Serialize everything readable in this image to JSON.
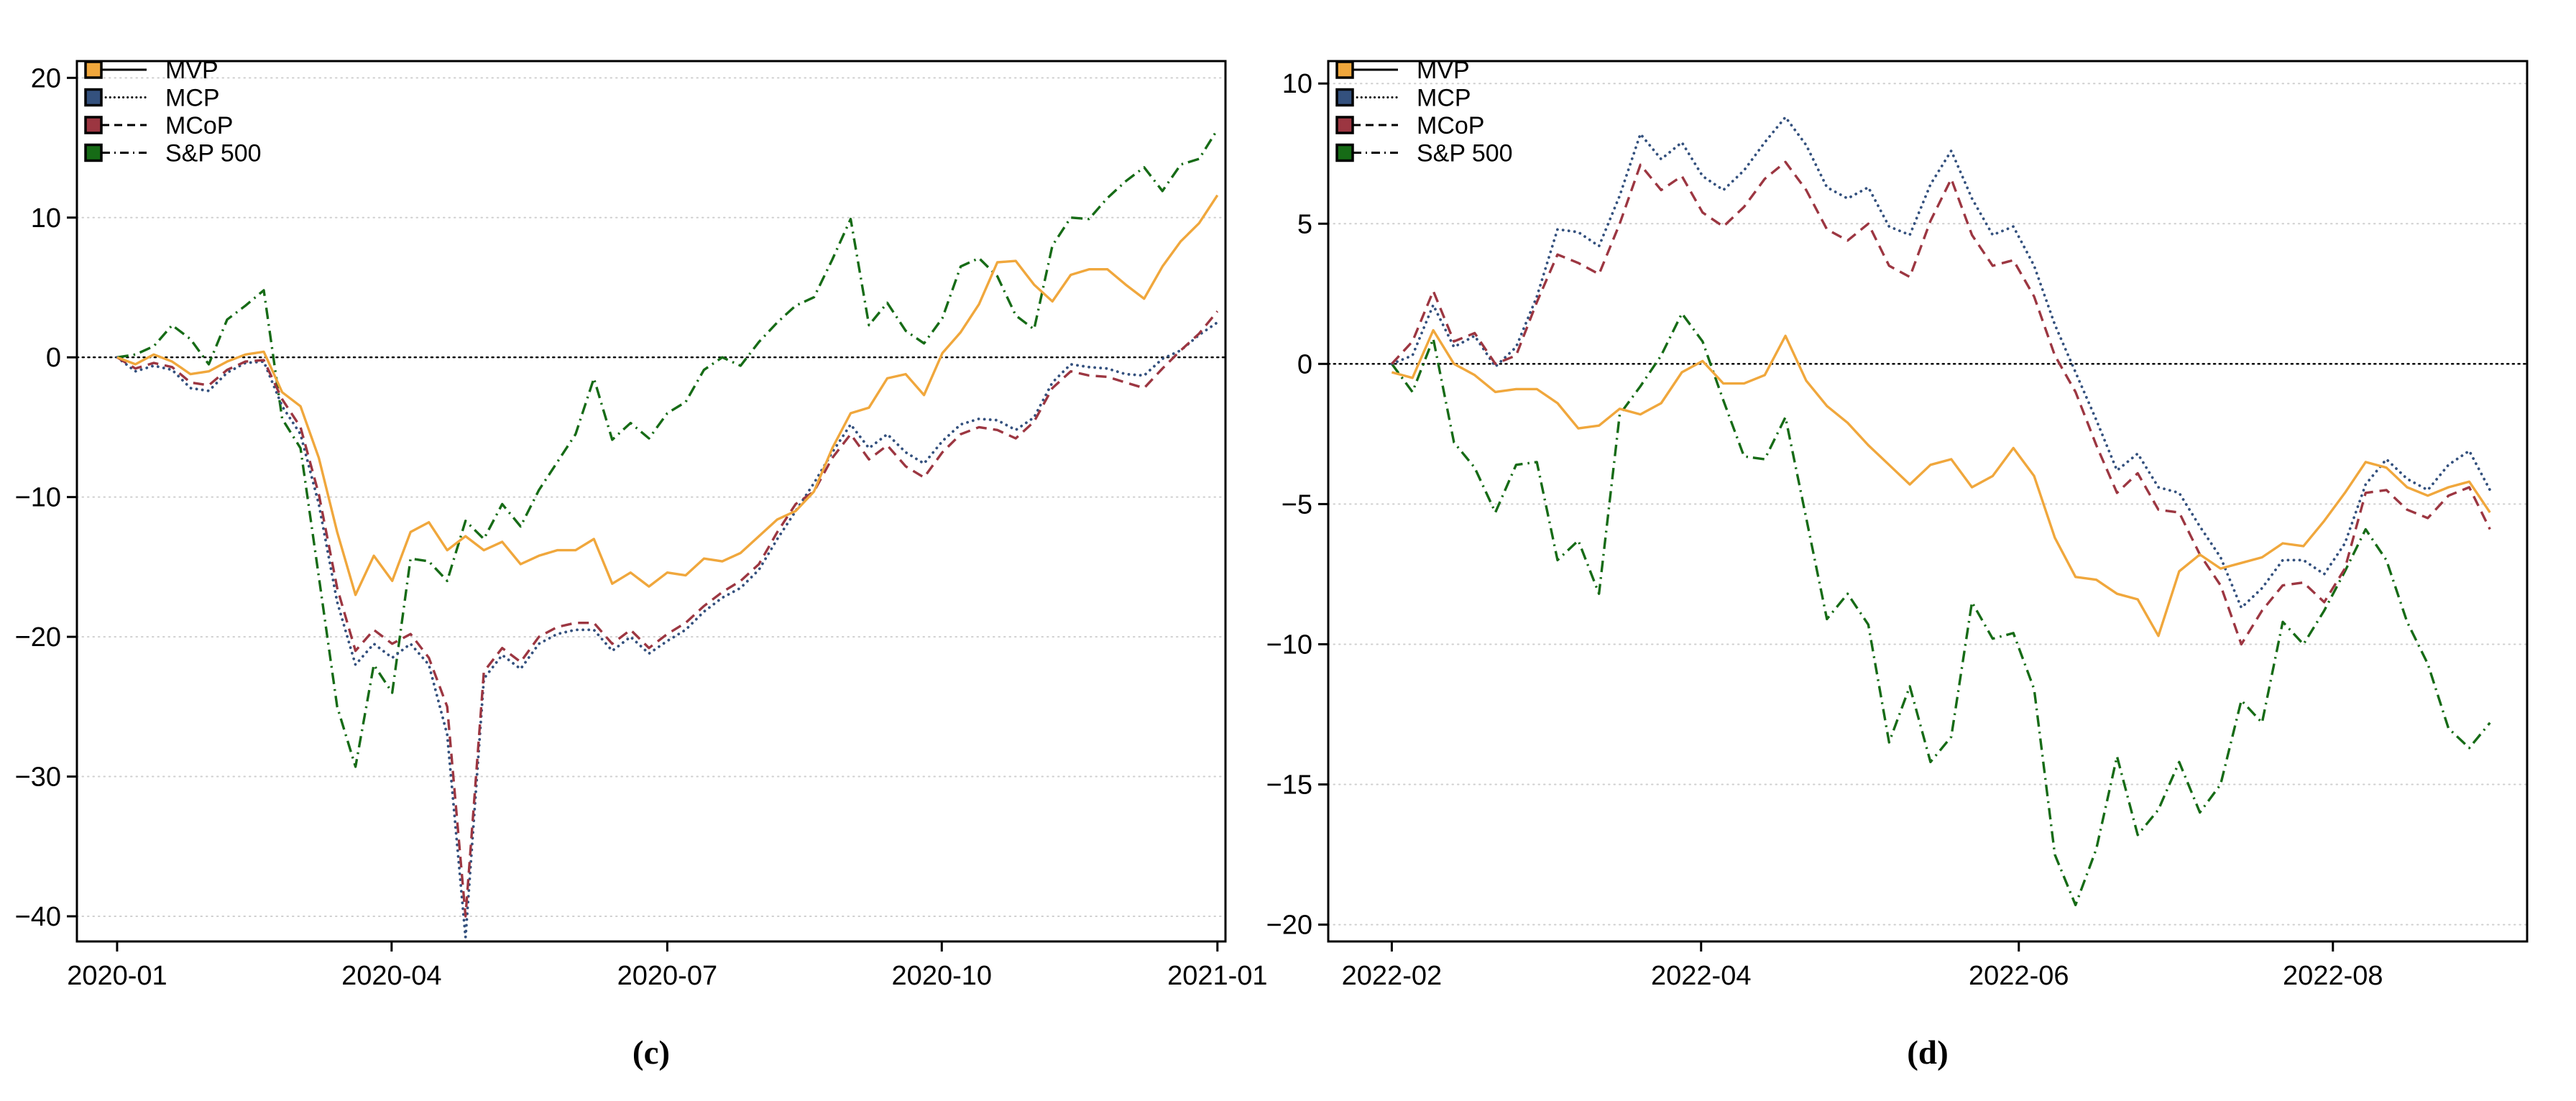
{
  "figure": {
    "caption_left": "(c)",
    "caption_right": "(d)"
  },
  "legend": {
    "items": [
      "MVP",
      "MCP",
      "MCoP",
      "S&P 500"
    ]
  },
  "chart_data": [
    {
      "id": "c",
      "type": "line",
      "caption": "(c)",
      "title": "",
      "xlabel": "",
      "ylabel": "",
      "grid": "horizontal-dotted",
      "legend_position": "top-left",
      "x_ticks": [
        {
          "label": "2020-01",
          "t": 0.035
        },
        {
          "label": "2020-04",
          "t": 0.274
        },
        {
          "label": "2020-07",
          "t": 0.514
        },
        {
          "label": "2020-10",
          "t": 0.753
        },
        {
          "label": "2021-01",
          "t": 0.993
        }
      ],
      "y_ticks": [
        {
          "v": 20,
          "label": "20"
        },
        {
          "v": 10,
          "label": "10"
        },
        {
          "v": 0,
          "label": "0"
        },
        {
          "v": -10,
          "label": "−10"
        },
        {
          "v": -20,
          "label": "−20"
        },
        {
          "v": -30,
          "label": "−30"
        },
        {
          "v": -40,
          "label": "−40"
        }
      ],
      "ylim": [
        -41.8,
        21.2
      ],
      "x_data_start": 0.035,
      "x_data_end": 0.993,
      "series": [
        {
          "name": "S&P 500",
          "color": "#166B16",
          "dash": "dashdot",
          "values": [
            0,
            0.2,
            0.8,
            2.3,
            1.3,
            -0.5,
            2.7,
            3.7,
            4.8,
            -4.4,
            -6.5,
            -15.7,
            -25.0,
            -29.3,
            -22.0,
            -24.0,
            -14.4,
            -14.6,
            -16.0,
            -11.7,
            -13.0,
            -10.5,
            -12.1,
            -9.5,
            -7.5,
            -5.5,
            -1.5,
            -5.9,
            -4.7,
            -5.8,
            -4.0,
            -3.2,
            -0.9,
            0.0,
            -0.6,
            1.1,
            2.5,
            3.7,
            4.3,
            7.0,
            9.9,
            2.3,
            3.9,
            1.9,
            1.0,
            2.8,
            6.5,
            7.1,
            5.8,
            3.0,
            2.0,
            8.0,
            10.0,
            9.9,
            11.4,
            12.6,
            13.6,
            11.9,
            13.8,
            14.2,
            16.3
          ]
        },
        {
          "name": "MCP",
          "color": "#34517E",
          "dash": "dotted",
          "values": [
            0,
            -1.0,
            -0.6,
            -0.9,
            -2.2,
            -2.4,
            -1.1,
            -0.4,
            -0.3,
            -3.5,
            -5.5,
            -10.5,
            -17.5,
            -22.0,
            -20.5,
            -21.5,
            -20.5,
            -22.0,
            -27.0,
            -41.5,
            -23.0,
            -21.3,
            -22.3,
            -20.5,
            -19.8,
            -19.5,
            -19.5,
            -21.0,
            -20.0,
            -21.2,
            -20.3,
            -19.5,
            -18.2,
            -17.2,
            -16.5,
            -15.2,
            -13.0,
            -11.0,
            -9.0,
            -6.8,
            -4.8,
            -6.5,
            -5.5,
            -6.8,
            -7.6,
            -6.0,
            -4.8,
            -4.4,
            -4.5,
            -5.2,
            -4.3,
            -1.8,
            -0.5,
            -0.7,
            -0.8,
            -1.2,
            -1.3,
            -0.1,
            0.5,
            1.6,
            2.5
          ]
        },
        {
          "name": "MCoP",
          "color": "#9C3641",
          "dash": "dashed",
          "values": [
            0,
            -0.8,
            -0.4,
            -0.7,
            -1.8,
            -2.0,
            -0.9,
            -0.3,
            -0.2,
            -3.0,
            -5.0,
            -9.8,
            -16.5,
            -21.0,
            -19.5,
            -20.5,
            -19.8,
            -21.5,
            -25.0,
            -40.0,
            -22.5,
            -20.8,
            -21.8,
            -20.0,
            -19.3,
            -19.0,
            -19.0,
            -20.5,
            -19.5,
            -20.8,
            -19.8,
            -19.0,
            -17.8,
            -16.8,
            -16.0,
            -14.8,
            -12.5,
            -10.5,
            -9.6,
            -7.2,
            -5.5,
            -7.3,
            -6.3,
            -7.8,
            -8.6,
            -6.8,
            -5.5,
            -5.0,
            -5.2,
            -5.8,
            -4.6,
            -2.2,
            -1.0,
            -1.3,
            -1.4,
            -1.8,
            -2.2,
            -0.8,
            0.5,
            1.7,
            3.3
          ]
        },
        {
          "name": "MVP",
          "color": "#F0A73C",
          "dash": "solid",
          "values": [
            0,
            -0.5,
            0.2,
            -0.3,
            -1.2,
            -1.0,
            -0.3,
            0.2,
            0.4,
            -2.5,
            -3.5,
            -7.2,
            -12.5,
            -17.0,
            -14.2,
            -16.0,
            -12.5,
            -11.8,
            -13.8,
            -12.8,
            -13.8,
            -13.2,
            -14.8,
            -14.2,
            -13.8,
            -13.8,
            -13.0,
            -16.2,
            -15.4,
            -16.4,
            -15.4,
            -15.6,
            -14.4,
            -14.6,
            -14.0,
            -12.8,
            -11.6,
            -11.0,
            -9.6,
            -6.5,
            -4.0,
            -3.6,
            -1.5,
            -1.2,
            -2.7,
            0.3,
            1.8,
            3.8,
            6.8,
            6.9,
            5.2,
            4.0,
            5.9,
            6.3,
            6.3,
            5.2,
            4.2,
            6.5,
            8.3,
            9.6,
            11.6
          ]
        }
      ]
    },
    {
      "id": "d",
      "type": "line",
      "caption": "(d)",
      "title": "",
      "xlabel": "",
      "ylabel": "",
      "grid": "horizontal-dotted",
      "legend_position": "top-left",
      "x_ticks": [
        {
          "label": "2022-02",
          "t": 0.053
        },
        {
          "label": "2022-04",
          "t": 0.311
        },
        {
          "label": "2022-06",
          "t": 0.576
        },
        {
          "label": "2022-08",
          "t": 0.838
        }
      ],
      "y_ticks": [
        {
          "v": 10,
          "label": "10"
        },
        {
          "v": 5,
          "label": "5"
        },
        {
          "v": 0,
          "label": "0"
        },
        {
          "v": -5,
          "label": "−5"
        },
        {
          "v": -10,
          "label": "−10"
        },
        {
          "v": -15,
          "label": "−15"
        },
        {
          "v": -20,
          "label": "−20"
        }
      ],
      "ylim": [
        -20.6,
        10.8
      ],
      "x_data_start": 0.053,
      "x_data_end": 0.969,
      "series": [
        {
          "name": "S&P 500",
          "color": "#166B16",
          "dash": "dashdot",
          "values": [
            0,
            -1.0,
            0.9,
            -2.8,
            -3.7,
            -5.3,
            -3.6,
            -3.5,
            -7.0,
            -6.3,
            -8.2,
            -1.8,
            -0.8,
            0.3,
            1.8,
            0.8,
            -1.3,
            -3.3,
            -3.4,
            -1.9,
            -5.5,
            -9.1,
            -8.2,
            -9.3,
            -13.5,
            -11.5,
            -14.2,
            -13.3,
            -8.5,
            -9.8,
            -9.6,
            -11.6,
            -17.5,
            -19.3,
            -17.3,
            -14.0,
            -16.8,
            -15.9,
            -14.2,
            -16.0,
            -15.0,
            -12.0,
            -12.8,
            -9.2,
            -10.0,
            -8.8,
            -7.4,
            -5.9,
            -7.0,
            -9.2,
            -10.7,
            -13.0,
            -13.7,
            -12.8
          ]
        },
        {
          "name": "MCP",
          "color": "#34517E",
          "dash": "dotted",
          "values": [
            0,
            0.3,
            2.1,
            0.6,
            1.0,
            -0.1,
            0.6,
            2.4,
            4.8,
            4.7,
            4.2,
            6.0,
            8.2,
            7.3,
            7.9,
            6.7,
            6.2,
            6.9,
            7.9,
            8.8,
            7.8,
            6.3,
            5.9,
            6.3,
            4.9,
            4.6,
            6.4,
            7.6,
            5.9,
            4.6,
            4.9,
            3.5,
            1.4,
            -0.3,
            -2.0,
            -3.8,
            -3.2,
            -4.4,
            -4.6,
            -5.8,
            -6.9,
            -8.7,
            -8.0,
            -7.0,
            -7.0,
            -7.5,
            -6.4,
            -4.3,
            -3.4,
            -4.1,
            -4.5,
            -3.6,
            -3.1,
            -4.5
          ]
        },
        {
          "name": "MCoP",
          "color": "#9C3641",
          "dash": "dashed",
          "values": [
            0,
            0.8,
            2.6,
            0.8,
            1.1,
            0.0,
            0.3,
            2.2,
            3.9,
            3.6,
            3.2,
            5.0,
            7.1,
            6.2,
            6.7,
            5.4,
            4.9,
            5.6,
            6.6,
            7.2,
            6.2,
            4.8,
            4.4,
            5.0,
            3.5,
            3.1,
            5.1,
            6.6,
            4.6,
            3.5,
            3.7,
            2.4,
            0.3,
            -1.0,
            -2.9,
            -4.6,
            -3.9,
            -5.2,
            -5.3,
            -6.8,
            -7.9,
            -10.0,
            -8.8,
            -7.9,
            -7.8,
            -8.5,
            -7.3,
            -4.6,
            -4.5,
            -5.2,
            -5.5,
            -4.7,
            -4.4,
            -5.9
          ]
        },
        {
          "name": "MVP",
          "color": "#F0A73C",
          "dash": "solid",
          "values": [
            -0.3,
            -0.5,
            1.2,
            0.0,
            -0.4,
            -1.0,
            -0.9,
            -0.9,
            -1.4,
            -2.3,
            -2.2,
            -1.6,
            -1.8,
            -1.4,
            -0.3,
            0.1,
            -0.7,
            -0.7,
            -0.4,
            1.0,
            -0.6,
            -1.5,
            -2.1,
            -2.9,
            -3.6,
            -4.3,
            -3.6,
            -3.4,
            -4.4,
            -4.0,
            -3.0,
            -4.0,
            -6.2,
            -7.6,
            -7.7,
            -8.2,
            -8.4,
            -9.7,
            -7.4,
            -6.8,
            -7.3,
            -7.1,
            -6.9,
            -6.4,
            -6.5,
            -5.6,
            -4.6,
            -3.5,
            -3.7,
            -4.4,
            -4.7,
            -4.4,
            -4.2,
            -5.3
          ]
        }
      ]
    }
  ]
}
